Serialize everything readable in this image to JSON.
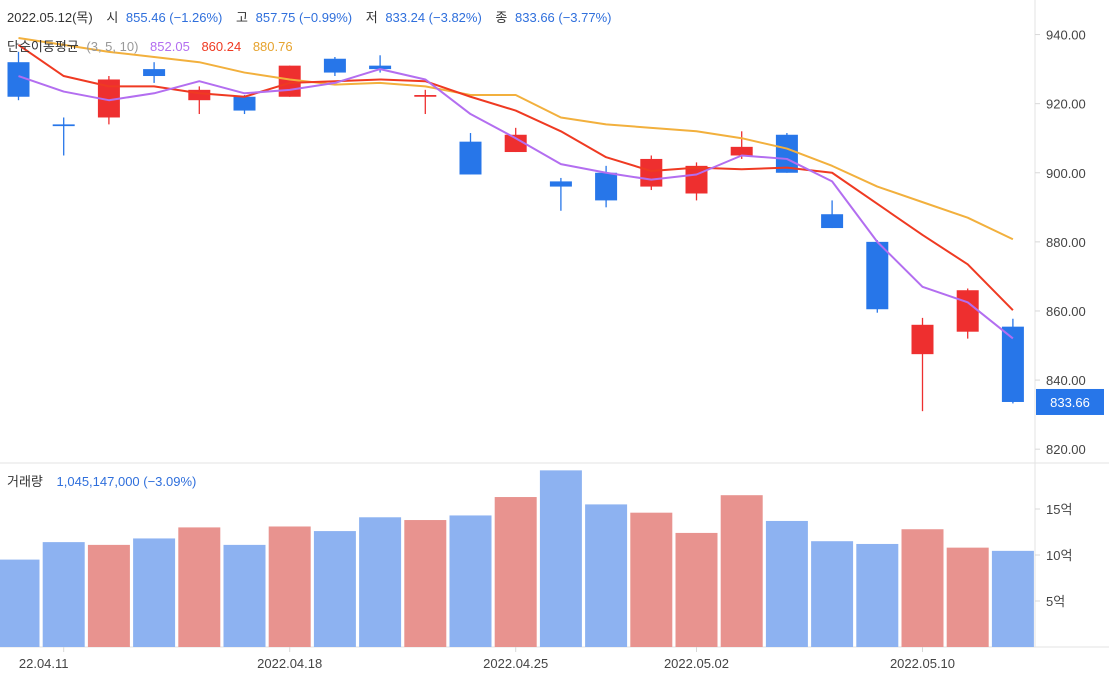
{
  "info": {
    "date": "2022.05.12(목)",
    "open_label": "시",
    "open_value": "855.46 (−1.26%)",
    "high_label": "고",
    "high_value": "857.75 (−0.99%)",
    "low_label": "저",
    "low_value": "833.24 (−3.82%)",
    "close_label": "종",
    "close_value": "833.66 (−3.77%)"
  },
  "ma_legend": {
    "label": "단순이동평균",
    "params": "(3, 5, 10)",
    "ma3": "852.05",
    "ma5": "860.24",
    "ma10": "880.76"
  },
  "volume_legend": {
    "label": "거래량",
    "value": "1,045,147,000 (−3.09%)"
  },
  "current_price_tag": "833.66",
  "colors": {
    "up": "#ee2f2f",
    "down": "#2776e9",
    "vol_up": "#e8938f",
    "vol_down": "#8db2f1",
    "ma3": "#b36ef0",
    "ma5": "#ef3a22",
    "ma10": "#f2b03d",
    "blue_text": "#2f6fdc"
  },
  "chart_data": {
    "type": "candlestick",
    "x_tick_labels": [
      "22.04.11",
      "2022.04.18",
      "2022.04.25",
      "2022.05.02",
      "2022.05.10"
    ],
    "price_axis": {
      "ticks": [
        "940.00",
        "920.00",
        "900.00",
        "880.00",
        "860.00",
        "840.00",
        "820.00"
      ],
      "range": [
        816,
        950
      ]
    },
    "volume_axis": {
      "ticks": [
        "15억",
        "10억",
        "5억"
      ],
      "range": [
        0,
        19
      ]
    },
    "candles": [
      {
        "date": "2022.04.08",
        "open": 932,
        "high": 935,
        "low": 921,
        "close": 922,
        "volume": 9.5,
        "dir": "down"
      },
      {
        "date": "2022.04.11",
        "open": 914,
        "high": 916,
        "low": 905,
        "close": 913.5,
        "volume": 11.4,
        "dir": "down"
      },
      {
        "date": "2022.04.12",
        "open": 916,
        "high": 928,
        "low": 914,
        "close": 927,
        "volume": 11.1,
        "dir": "up"
      },
      {
        "date": "2022.04.13",
        "open": 930,
        "high": 932,
        "low": 926,
        "close": 928,
        "volume": 11.8,
        "dir": "down"
      },
      {
        "date": "2022.04.14",
        "open": 921,
        "high": 925,
        "low": 917,
        "close": 924,
        "volume": 13.0,
        "dir": "up"
      },
      {
        "date": "2022.04.15",
        "open": 922,
        "high": 922.5,
        "low": 917,
        "close": 918,
        "volume": 11.1,
        "dir": "down"
      },
      {
        "date": "2022.04.18",
        "open": 922,
        "high": 931,
        "low": 922,
        "close": 931,
        "volume": 13.1,
        "dir": "up"
      },
      {
        "date": "2022.04.19",
        "open": 933,
        "high": 933.5,
        "low": 928,
        "close": 929,
        "volume": 12.6,
        "dir": "down"
      },
      {
        "date": "2022.04.20",
        "open": 931,
        "high": 934,
        "low": 929,
        "close": 930,
        "volume": 14.1,
        "dir": "down"
      },
      {
        "date": "2022.04.21",
        "open": 922,
        "high": 924,
        "low": 917,
        "close": 922.5,
        "volume": 13.8,
        "dir": "up"
      },
      {
        "date": "2022.04.22",
        "open": 909,
        "high": 911.5,
        "low": 899.5,
        "close": 899.5,
        "volume": 14.3,
        "dir": "down"
      },
      {
        "date": "2022.04.25",
        "open": 906,
        "high": 913,
        "low": 906,
        "close": 911,
        "volume": 16.3,
        "dir": "up"
      },
      {
        "date": "2022.04.26",
        "open": 897.5,
        "high": 898.5,
        "low": 889,
        "close": 896,
        "volume": 19.2,
        "dir": "down"
      },
      {
        "date": "2022.04.27",
        "open": 900,
        "high": 902,
        "low": 890,
        "close": 892,
        "volume": 15.5,
        "dir": "down"
      },
      {
        "date": "2022.04.28",
        "open": 896,
        "high": 905,
        "low": 895,
        "close": 904,
        "volume": 14.6,
        "dir": "up"
      },
      {
        "date": "2022.05.02",
        "open": 894,
        "high": 903,
        "low": 892,
        "close": 902,
        "volume": 12.4,
        "dir": "up"
      },
      {
        "date": "2022.05.03",
        "open": 905,
        "high": 912,
        "low": 904,
        "close": 907.5,
        "volume": 16.5,
        "dir": "up"
      },
      {
        "date": "2022.05.04",
        "open": 911,
        "high": 911.5,
        "low": 900,
        "close": 900,
        "volume": 13.7,
        "dir": "down"
      },
      {
        "date": "2022.05.06",
        "open": 888,
        "high": 892,
        "low": 884,
        "close": 884,
        "volume": 11.5,
        "dir": "down"
      },
      {
        "date": "2022.05.09",
        "open": 880,
        "high": 880.5,
        "low": 859.5,
        "close": 860.5,
        "volume": 11.2,
        "dir": "down"
      },
      {
        "date": "2022.05.10",
        "open": 847.5,
        "high": 858,
        "low": 831,
        "close": 856,
        "volume": 12.8,
        "dir": "up"
      },
      {
        "date": "2022.05.11",
        "open": 854,
        "high": 866.5,
        "low": 852,
        "close": 866,
        "volume": 10.8,
        "dir": "up"
      },
      {
        "date": "2022.05.12",
        "open": 855.46,
        "high": 857.75,
        "low": 833.24,
        "close": 833.66,
        "volume": 10.45,
        "dir": "down"
      }
    ],
    "ma3": [
      928,
      923.5,
      921,
      923,
      926.5,
      923,
      924,
      926,
      930,
      927,
      917,
      910,
      902.5,
      900,
      898,
      899.5,
      905,
      904,
      897.5,
      880,
      867,
      862.5,
      852.05
    ],
    "ma5": [
      937,
      928,
      925,
      925,
      923,
      922,
      926,
      926.5,
      927,
      926.5,
      922,
      918,
      912,
      904.5,
      900.5,
      901.5,
      901,
      901.5,
      900,
      891,
      882,
      873.5,
      860.24
    ],
    "ma10": [
      939,
      937,
      935,
      933.5,
      932,
      929,
      927,
      925.5,
      926,
      925,
      922.5,
      922.5,
      916,
      914,
      913,
      912,
      910,
      907,
      902,
      896,
      891.5,
      887,
      880.76
    ]
  }
}
